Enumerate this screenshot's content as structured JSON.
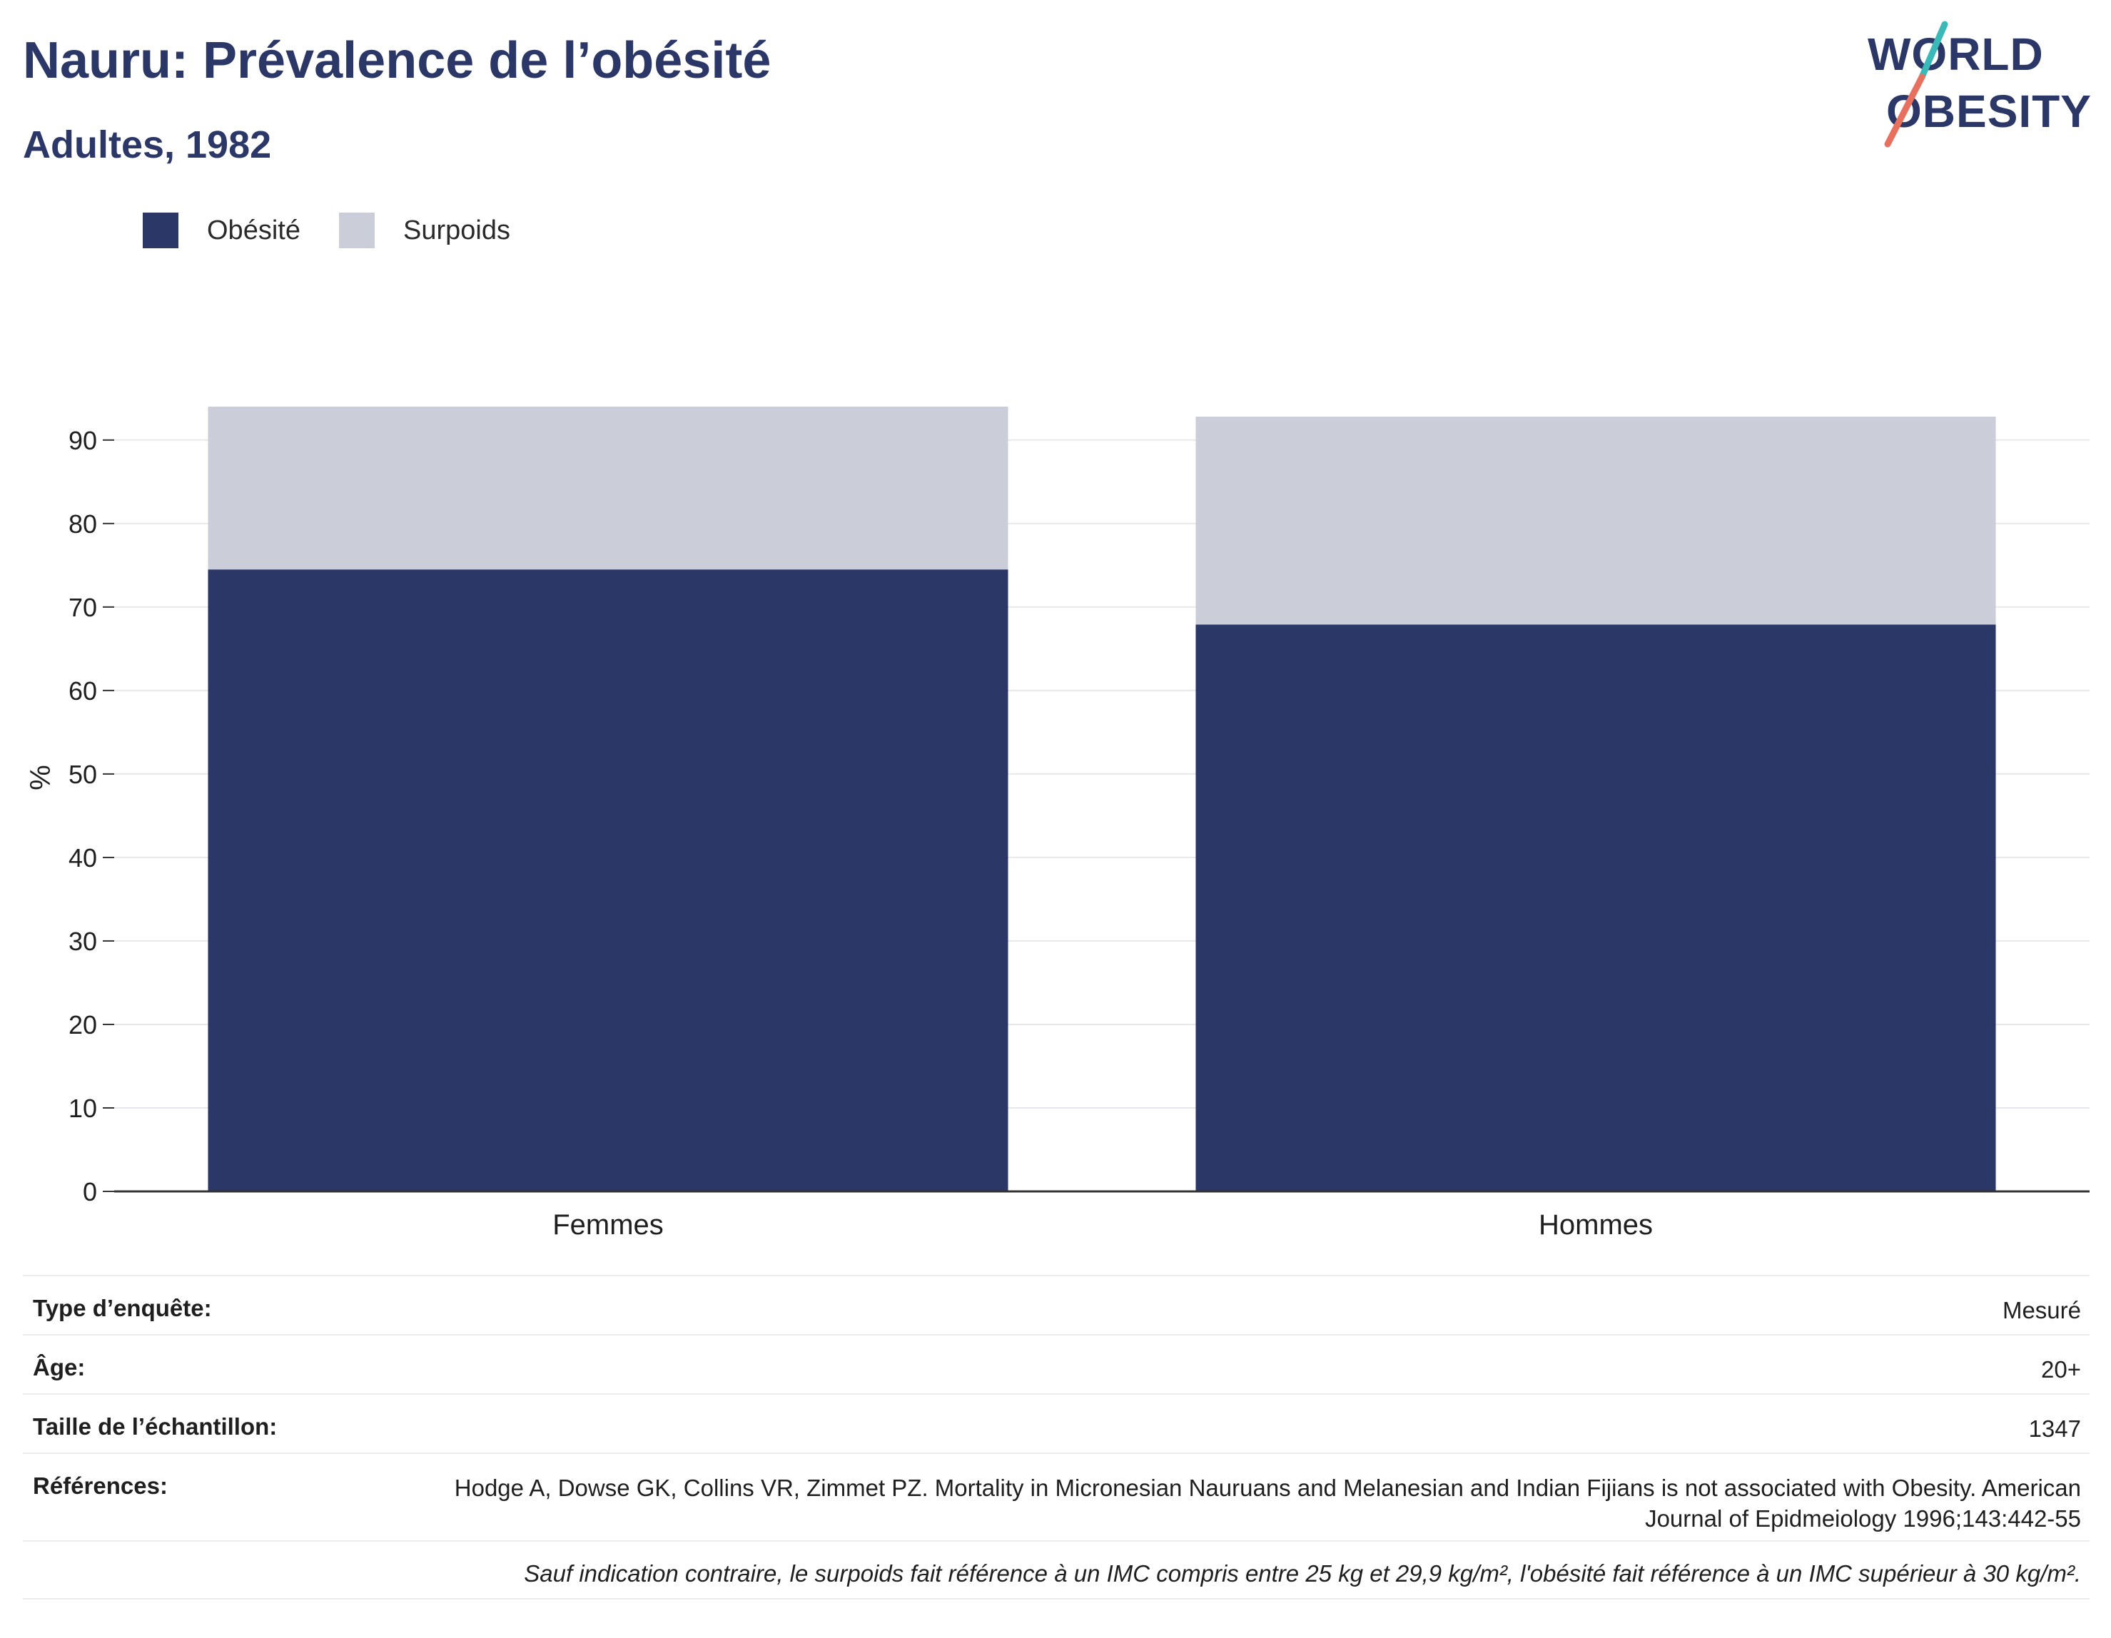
{
  "header": {
    "title": "Nauru: Prévalence de l’obésité",
    "subtitle": "Adultes, 1982"
  },
  "logo": {
    "line1": "WORLD",
    "line2": "OBESITY",
    "accent_teal": "#3bb8b8",
    "accent_coral": "#e8705f",
    "text_color": "#2b3766"
  },
  "chart_data": {
    "type": "bar",
    "stacked": true,
    "categories": [
      "Femmes",
      "Hommes"
    ],
    "series": [
      {
        "name": "Obésité",
        "values": [
          74.5,
          67.9
        ],
        "color": "#2b3766"
      },
      {
        "name": "Surpoids",
        "values": [
          19.5,
          24.9
        ],
        "color": "#cbcdd8"
      }
    ],
    "ylabel": "%",
    "xlabel": "",
    "ylim": [
      0,
      94
    ],
    "yticks": [
      0,
      10,
      20,
      30,
      40,
      50,
      60,
      70,
      80,
      90
    ],
    "grid": true,
    "legend_position": "top-left"
  },
  "info": {
    "survey_type_label": "Type d’enquête:",
    "survey_type_value": "Mesuré",
    "age_label": "Âge:",
    "age_value": "20+",
    "sample_label": "Taille de l’échantillon:",
    "sample_value": "1347",
    "refs_label": "Références:",
    "refs_value": "Hodge A, Dowse GK, Collins VR, Zimmet PZ. Mortality in Micronesian Nauruans and Melanesian and Indian Fijians is not associated with Obesity. American Journal of Epidmeiology 1996;143:442-55",
    "note": "Sauf indication contraire, le surpoids fait référence à un IMC compris entre 25 kg et 29,9 kg/m², l'obésité fait référence à un IMC supérieur à 30 kg/m²."
  }
}
